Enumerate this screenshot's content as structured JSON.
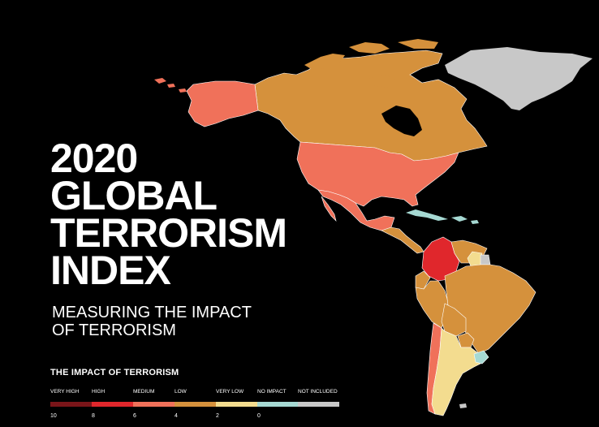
{
  "title_lines": [
    "2020",
    "GLOBAL",
    "TERRORISM",
    "INDEX"
  ],
  "subtitle_lines": [
    "MEASURING THE IMPACT",
    "OF TERRORISM"
  ],
  "legend": {
    "title": "THE IMPACT OF TERRORISM",
    "categories": [
      {
        "label": "VERY HIGH",
        "color": "#7a1519"
      },
      {
        "label": "HIGH",
        "color": "#e0272c"
      },
      {
        "label": "MEDIUM",
        "color": "#f0715a"
      },
      {
        "label": "LOW",
        "color": "#d5913c"
      },
      {
        "label": "VERY LOW",
        "color": "#f3dc8f"
      },
      {
        "label": "NO IMPACT",
        "color": "#a6d9d3"
      },
      {
        "label": "NOT INCLUDED",
        "color": "#c8c8c8"
      }
    ],
    "scale_labels": [
      "10",
      "8",
      "6",
      "4",
      "2",
      "0"
    ]
  },
  "map": {
    "regions": [
      {
        "name": "Alaska (United States)",
        "level": "MEDIUM"
      },
      {
        "name": "Canada",
        "level": "LOW"
      },
      {
        "name": "Greenland",
        "level": "NOT INCLUDED"
      },
      {
        "name": "United States",
        "level": "MEDIUM"
      },
      {
        "name": "Mexico",
        "level": "MEDIUM"
      },
      {
        "name": "Central America",
        "level": "LOW"
      },
      {
        "name": "Cuba",
        "level": "NO IMPACT"
      },
      {
        "name": "Colombia",
        "level": "HIGH"
      },
      {
        "name": "Venezuela",
        "level": "LOW"
      },
      {
        "name": "Guyana",
        "level": "VERY LOW"
      },
      {
        "name": "Suriname",
        "level": "NOT INCLUDED"
      },
      {
        "name": "Ecuador",
        "level": "LOW"
      },
      {
        "name": "Peru",
        "level": "LOW"
      },
      {
        "name": "Brazil",
        "level": "LOW"
      },
      {
        "name": "Bolivia",
        "level": "LOW"
      },
      {
        "name": "Paraguay",
        "level": "LOW"
      },
      {
        "name": "Chile",
        "level": "MEDIUM"
      },
      {
        "name": "Argentina",
        "level": "VERY LOW"
      },
      {
        "name": "Uruguay",
        "level": "NO IMPACT"
      }
    ]
  }
}
